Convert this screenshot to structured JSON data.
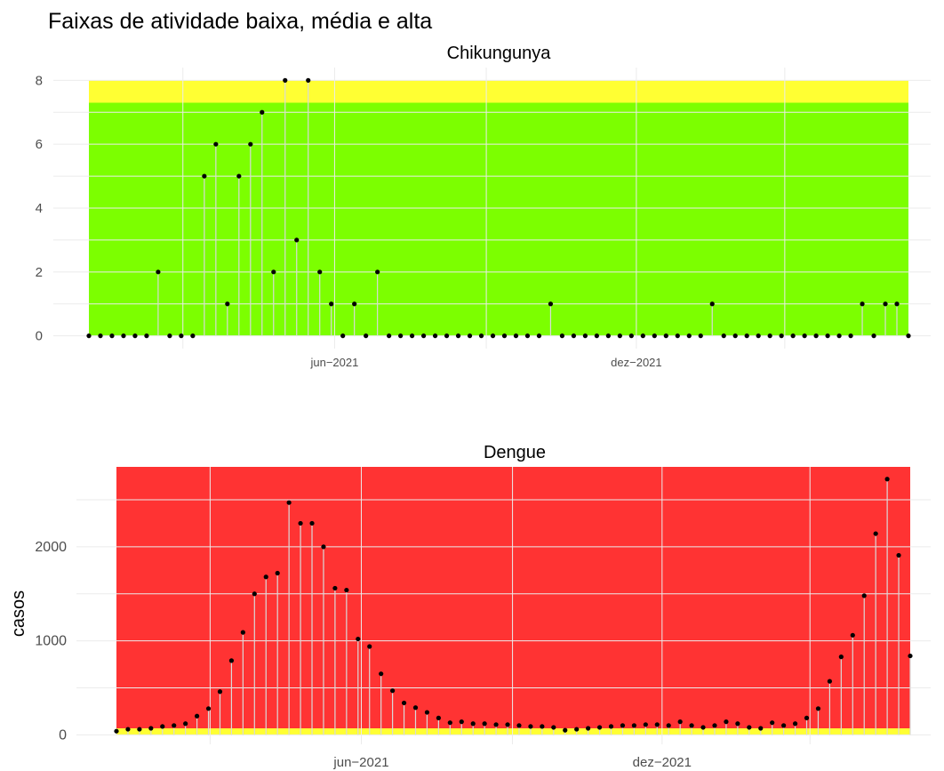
{
  "figure": {
    "title": "Faixas de atividade baixa, média e alta",
    "ylabel": "casos"
  },
  "colors": {
    "band_low": "#ffff33",
    "band_mid": "#7cff00",
    "band_high": "#ff3333",
    "point": "#000000",
    "stem": "#d9d9d9",
    "grid": "#ebebeb"
  },
  "chart_data": [
    {
      "type": "scatter",
      "style": "lollipop",
      "title": "Chikungunya",
      "xlabel": "",
      "ylabel": "",
      "x_start": "2021-01-03",
      "x_step_days": 7,
      "x_ticks": [
        "jun−2021",
        "dez−2021"
      ],
      "y_ticks": [
        "0",
        "2",
        "4",
        "6",
        "8"
      ],
      "ylim": [
        -0.4,
        8.4
      ],
      "bands": [
        {
          "name": "baixa",
          "color": "#7cff00",
          "from": 0,
          "to": 7.3
        },
        {
          "name": "média",
          "color": "#ffff33",
          "from": 7.3,
          "to": 8.0
        }
      ],
      "values": [
        0,
        0,
        0,
        0,
        0,
        0,
        2,
        0,
        0,
        0,
        5,
        6,
        1,
        5,
        6,
        7,
        2,
        8,
        3,
        8,
        2,
        1,
        0,
        1,
        0,
        2,
        0,
        0,
        0,
        0,
        0,
        0,
        0,
        0,
        0,
        0,
        0,
        0,
        0,
        0,
        1,
        0,
        0,
        0,
        0,
        0,
        0,
        0,
        0,
        0,
        0,
        0,
        0,
        0,
        1,
        0,
        0,
        0,
        0,
        0,
        0,
        0,
        0,
        0,
        0,
        0,
        0,
        1,
        0,
        1,
        1,
        0
      ],
      "grid": true
    },
    {
      "type": "scatter",
      "style": "lollipop",
      "title": "Dengue",
      "xlabel": "",
      "ylabel": "casos",
      "x_start": "2021-01-03",
      "x_step_days": 7,
      "x_ticks": [
        "jun−2021",
        "dez−2021"
      ],
      "y_ticks": [
        "0",
        "1000",
        "2000"
      ],
      "ylim": [
        -100,
        2850
      ],
      "bands": [
        {
          "name": "baixa",
          "color": "#ffff33",
          "from": 0,
          "to": 70
        },
        {
          "name": "alta",
          "color": "#ff3333",
          "from": 70,
          "to": 2850
        }
      ],
      "values": [
        40,
        60,
        60,
        70,
        90,
        100,
        120,
        200,
        280,
        460,
        790,
        1090,
        1500,
        1680,
        1720,
        2470,
        2250,
        2250,
        2000,
        1560,
        1540,
        1020,
        940,
        650,
        470,
        340,
        290,
        240,
        180,
        130,
        140,
        120,
        120,
        110,
        110,
        100,
        90,
        90,
        80,
        50,
        60,
        70,
        80,
        90,
        100,
        100,
        110,
        110,
        100,
        140,
        100,
        80,
        100,
        140,
        120,
        80,
        70,
        130,
        100,
        120,
        180,
        280,
        570,
        830,
        1060,
        1480,
        2140,
        2720,
        1910,
        840
      ],
      "grid": true
    }
  ]
}
